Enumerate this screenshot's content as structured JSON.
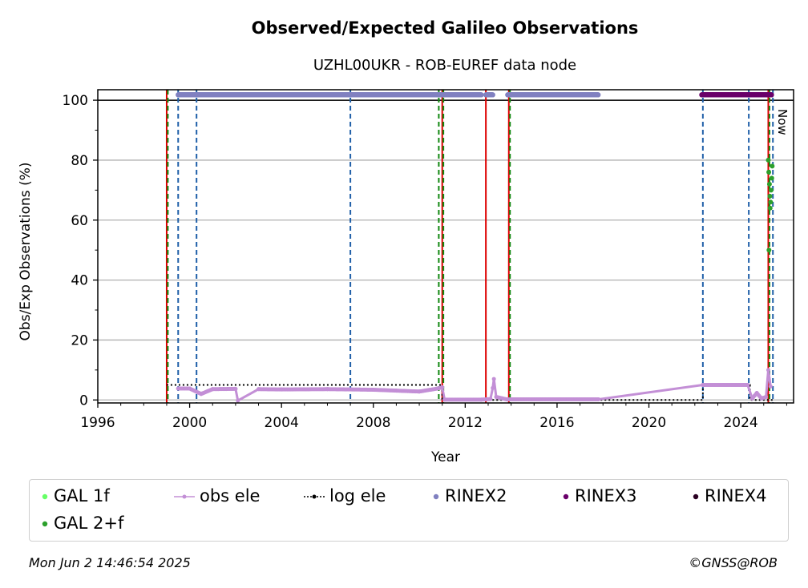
{
  "title": "Observed/Expected Galileo Observations",
  "subtitle": "UZHL00UKR - ROB-EUREF data node",
  "now_label": "Now",
  "footer": {
    "timestamp": "Mon Jun  2 14:46:54 2025",
    "credit": "©GNSS@ROB"
  },
  "colors": {
    "gal1f": "#66ff66",
    "gal2f": "#2ca02c",
    "obs_ele": "#c38fd6",
    "log_ele": "#000000",
    "rinex2": "#8080c0",
    "rinex3": "#6a006a",
    "rinex4": "#2a0022",
    "red_line": "#dd0000",
    "blue_dash": "#1f5fa8",
    "green_dash": "#118811"
  },
  "legend": [
    {
      "label": "GAL 1f",
      "marker": "dot",
      "color_key": "gal1f"
    },
    {
      "label": "obs ele",
      "marker": "line-dot",
      "color_key": "obs_ele"
    },
    {
      "label": "log ele",
      "marker": "dotted-line",
      "color_key": "log_ele"
    },
    {
      "label": "RINEX2",
      "marker": "dot",
      "color_key": "rinex2"
    },
    {
      "label": "RINEX3",
      "marker": "dot",
      "color_key": "rinex3"
    },
    {
      "label": "RINEX4",
      "marker": "dot",
      "color_key": "rinex4"
    },
    {
      "label": "GAL 2+f",
      "marker": "dot",
      "color_key": "gal2f"
    }
  ],
  "chart_data": {
    "type": "scatter",
    "title": "Observed/Expected Galileo Observations",
    "subtitle": "UZHL00UKR - ROB-EUREF data node",
    "xlabel": "Year",
    "ylabel": "Obs/Exp Observations (%)",
    "xlim": [
      1996,
      2026.3
    ],
    "ylim": [
      -1,
      103.5
    ],
    "xticks": [
      1996,
      2000,
      2004,
      2008,
      2012,
      2016,
      2020,
      2024
    ],
    "yticks": [
      0,
      20,
      40,
      60,
      80,
      100
    ],
    "grid": "y",
    "reference_line": 100,
    "series": [
      {
        "name": "RINEX2",
        "segments": [
          [
            1999.5,
            2012.7,
            101.8
          ],
          [
            2012.9,
            2013.2,
            101.8
          ],
          [
            2013.85,
            2017.8,
            101.8
          ]
        ]
      },
      {
        "name": "RINEX3",
        "segments": [
          [
            2022.3,
            2025.35,
            101.8
          ]
        ]
      },
      {
        "name": "obs ele",
        "points": [
          [
            1999.5,
            3.8
          ],
          [
            2000.0,
            3.8
          ],
          [
            2000.5,
            2.0
          ],
          [
            2001.0,
            3.6
          ],
          [
            2002.0,
            3.7
          ],
          [
            2002.1,
            -0.2
          ],
          [
            2003.0,
            3.6
          ],
          [
            2004.0,
            3.5
          ],
          [
            2006.0,
            3.6
          ],
          [
            2008.0,
            3.4
          ],
          [
            2009.0,
            3.1
          ],
          [
            2010.0,
            2.8
          ],
          [
            2010.8,
            3.8
          ],
          [
            2011.0,
            4.2
          ],
          [
            2011.1,
            0.1
          ],
          [
            2012.7,
            0.1
          ],
          [
            2013.1,
            0.3
          ],
          [
            2013.2,
            4.0
          ],
          [
            2013.25,
            7.0
          ],
          [
            2013.35,
            1.0
          ],
          [
            2013.8,
            0.2
          ],
          [
            2017.8,
            0.2
          ],
          [
            2022.35,
            5.0
          ],
          [
            2024.3,
            5.0
          ],
          [
            2024.5,
            0.5
          ],
          [
            2024.7,
            2.3
          ],
          [
            2024.9,
            0.5
          ],
          [
            2025.1,
            1.0
          ],
          [
            2025.2,
            10.0
          ],
          [
            2025.3,
            4.5
          ]
        ]
      },
      {
        "name": "log ele",
        "points": [
          [
            1999.0,
            5.0
          ],
          [
            2011.0,
            5.0
          ],
          [
            2011.0,
            0.0
          ],
          [
            2022.35,
            0.0
          ],
          [
            2022.35,
            5.0
          ],
          [
            2024.4,
            5.0
          ],
          [
            2024.4,
            0.0
          ],
          [
            2025.4,
            0.0
          ]
        ]
      },
      {
        "name": "GAL 2+f",
        "points": [
          [
            2025.2,
            80
          ],
          [
            2025.22,
            76
          ],
          [
            2025.25,
            72
          ],
          [
            2025.27,
            68
          ],
          [
            2025.3,
            66
          ],
          [
            2025.32,
            70
          ],
          [
            2025.35,
            74
          ],
          [
            2025.37,
            78
          ],
          [
            2025.28,
            64
          ],
          [
            2025.23,
            50
          ]
        ]
      }
    ],
    "events": {
      "red_solid": [
        1999.0,
        2011.0,
        2012.9,
        2013.9,
        2025.2
      ],
      "blue_dashed": [
        1999.5,
        2000.3,
        2007.0,
        2022.35,
        2024.35,
        2025.4
      ],
      "green_dashed": [
        1999.05,
        2010.85,
        2011.05,
        2013.95,
        2025.25
      ]
    },
    "now": 2025.42
  }
}
